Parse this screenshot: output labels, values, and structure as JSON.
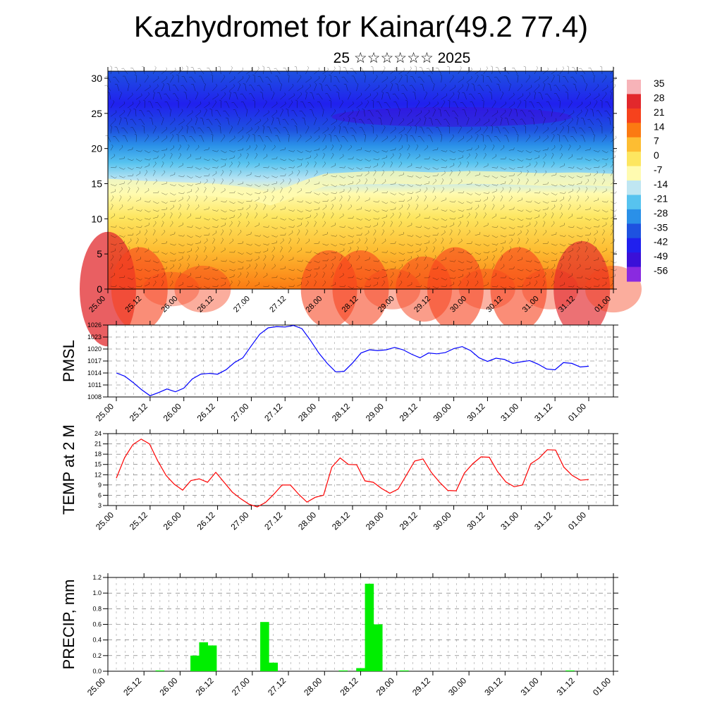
{
  "title": "Kazhydromet for Kainar(49.2 77.4)",
  "subtitle": "25 ☆☆☆☆☆☆ 2025",
  "chart_data": [
    {
      "type": "heatmap",
      "name": "cross-section",
      "xticks": [
        "25.00",
        "25.12",
        "26.00",
        "26.12",
        "27.00",
        "27.12",
        "28.00",
        "28.12",
        "29.00",
        "29.12",
        "30.00",
        "30.12",
        "31.00",
        "31.12",
        "01.00"
      ],
      "yticks": [
        "0",
        "5",
        "10",
        "15",
        "20",
        "25",
        "30"
      ],
      "ylim": [
        0,
        31
      ],
      "colorbar": {
        "labels": [
          "35",
          "28",
          "21",
          "14",
          "7",
          "0",
          "-7",
          "-14",
          "-21",
          "-28",
          "-35",
          "-42",
          "-49",
          "-56"
        ],
        "colors": [
          "#f7b3b8",
          "#e2282c",
          "#f6421d",
          "#fb7a12",
          "#fdbd32",
          "#fde660",
          "#fffbb0",
          "#bfe6f2",
          "#57c3ef",
          "#2a90e8",
          "#1e52e0",
          "#2020ee",
          "#3a10d8",
          "#8a2ae0"
        ]
      },
      "freezing_level_profile": {
        "x": [
          0,
          2,
          4,
          6,
          8,
          9,
          10,
          11,
          12,
          14,
          16,
          18,
          20,
          22,
          24,
          26,
          28
        ],
        "z": [
          14.5,
          14.2,
          14.0,
          13.8,
          13.2,
          12.5,
          13.4,
          14.4,
          15.2,
          15.5,
          15.6,
          15.4,
          15.6,
          15.5,
          15.3,
          15.4,
          15.2
        ]
      },
      "surface_temp_profile": [
        22,
        17,
        9,
        11,
        4,
        8,
        3,
        16,
        16,
        10,
        14,
        17,
        10,
        17,
        10,
        19,
        11
      ]
    },
    {
      "type": "line",
      "ylabel": "PMSL",
      "color": "#0000ff",
      "xticks": [
        "25.00",
        "25.12",
        "26.00",
        "26.12",
        "27.00",
        "27.12",
        "28.00",
        "28.12",
        "29.00",
        "29.12",
        "30.00",
        "30.12",
        "31.00",
        "31.12",
        "01.00"
      ],
      "yticks": [
        "1008",
        "1011",
        "1014",
        "1017",
        "1020",
        "1023",
        "1026"
      ],
      "ylim": [
        1008,
        1026
      ],
      "values": [
        1014.0,
        1013.2,
        1011.6,
        1009.8,
        1008.3,
        1009.1,
        1010.0,
        1009.3,
        1010.2,
        1012.5,
        1013.7,
        1013.9,
        1013.7,
        1014.8,
        1016.6,
        1017.8,
        1020.8,
        1023.7,
        1025.3,
        1025.6,
        1025.5,
        1025.9,
        1025.1,
        1022.2,
        1019.0,
        1016.4,
        1014.3,
        1014.4,
        1016.5,
        1019.0,
        1019.8,
        1019.6,
        1019.8,
        1020.4,
        1019.8,
        1018.7,
        1017.8,
        1019.0,
        1018.8,
        1019.1,
        1020.1,
        1020.6,
        1019.6,
        1017.8,
        1016.9,
        1017.7,
        1017.4,
        1016.4,
        1016.8,
        1017.1,
        1016.2,
        1015.0,
        1014.8,
        1016.6,
        1016.4,
        1015.5,
        1015.7
      ]
    },
    {
      "type": "line",
      "ylabel": "TEMP at 2 M",
      "color": "#ff0000",
      "xticks": [
        "25.00",
        "25.12",
        "26.00",
        "26.12",
        "27.00",
        "27.12",
        "28.00",
        "28.12",
        "29.00",
        "29.12",
        "30.00",
        "30.12",
        "31.00",
        "31.12",
        "01.00"
      ],
      "yticks": [
        "3",
        "6",
        "9",
        "12",
        "15",
        "18",
        "21",
        "24"
      ],
      "ylim": [
        3,
        24
      ],
      "values": [
        11.0,
        17.0,
        20.8,
        22.4,
        21.0,
        16.0,
        11.8,
        9.2,
        7.5,
        10.3,
        10.8,
        9.8,
        12.7,
        9.8,
        6.9,
        5.0,
        3.4,
        2.6,
        3.9,
        6.3,
        9.0,
        9.0,
        6.3,
        4.0,
        5.4,
        6.0,
        14.2,
        16.9,
        15.0,
        14.9,
        10.2,
        9.8,
        8.0,
        6.6,
        7.8,
        11.9,
        16.0,
        16.6,
        12.7,
        9.8,
        7.4,
        7.3,
        12.5,
        15.2,
        17.2,
        17.1,
        12.9,
        9.9,
        8.5,
        9.0,
        15.2,
        16.8,
        19.3,
        19.2,
        14.2,
        11.8,
        10.4,
        10.6
      ]
    },
    {
      "type": "bar",
      "ylabel": "PRECIP, mm",
      "color": "#00ee00",
      "xticks": [
        "25.00",
        "25.12",
        "26.00",
        "26.12",
        "27.00",
        "27.12",
        "28.00",
        "28.12",
        "29.00",
        "29.12",
        "30.00",
        "30.12",
        "31.00",
        "31.12",
        "01.00"
      ],
      "yticks": [
        "0.0",
        "0.2",
        "0.4",
        "0.6",
        "0.8",
        "1.0",
        "1.2"
      ],
      "ylim": [
        0,
        1.2
      ],
      "values": [
        0,
        0,
        0,
        0,
        0,
        0.01,
        0,
        0,
        0,
        0.2,
        0.37,
        0.33,
        0,
        0,
        0,
        0,
        0,
        0.63,
        0.11,
        0,
        0,
        0,
        0,
        0,
        0,
        0,
        0.01,
        0,
        0.04,
        1.12,
        0.6,
        0,
        0,
        0.01,
        0,
        0,
        0,
        0,
        0,
        0,
        0,
        0,
        0,
        0,
        0,
        0,
        0,
        0,
        0,
        0,
        0,
        0,
        0.01,
        0,
        0,
        0,
        0
      ]
    }
  ]
}
